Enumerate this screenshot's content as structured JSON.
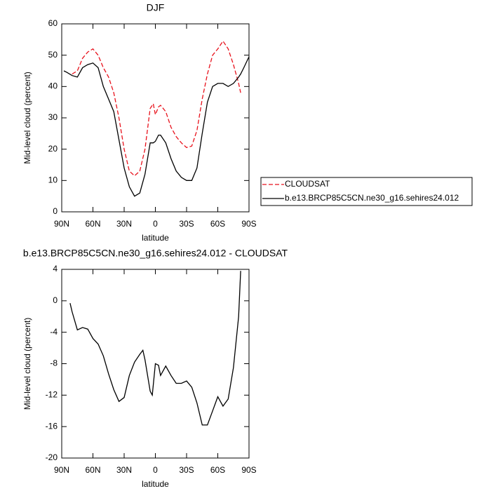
{
  "chart_data": [
    {
      "type": "line",
      "title": "DJF",
      "xlabel": "latitude",
      "ylabel": "Mid-level cloud (percent)",
      "xlim": [
        90,
        -90
      ],
      "xticks": [
        {
          "value": 90,
          "label": "90N"
        },
        {
          "value": 60,
          "label": "60N"
        },
        {
          "value": 30,
          "label": "30N"
        },
        0,
        {
          "value": -30,
          "label": "30S"
        },
        {
          "value": -60,
          "label": "60S"
        },
        {
          "value": -90,
          "label": "90S"
        }
      ],
      "ylim": [
        0,
        60
      ],
      "yticks": [
        0,
        10,
        20,
        30,
        40,
        50,
        60
      ],
      "x": [
        88,
        85,
        80,
        75,
        70,
        65,
        60,
        55,
        50,
        45,
        40,
        35,
        30,
        25,
        20,
        15,
        10,
        5,
        2,
        0,
        -3,
        -5,
        -10,
        -15,
        -20,
        -25,
        -30,
        -35,
        -40,
        -45,
        -50,
        -55,
        -60,
        -65,
        -70,
        -75,
        -80,
        -82,
        -85,
        -90
      ],
      "series": [
        {
          "name": "CLOUDSAT",
          "color": "#e8121c",
          "dashed": true,
          "values": [
            null,
            null,
            44,
            45,
            49,
            51,
            52,
            50,
            46,
            43,
            38,
            30,
            20,
            13,
            11.5,
            13,
            20,
            33,
            34.5,
            31,
            33.5,
            34,
            32,
            27,
            24,
            22,
            20.5,
            21,
            26,
            36,
            44,
            50,
            52,
            54.5,
            52,
            47,
            41,
            38,
            null,
            null
          ]
        },
        {
          "name": "b.e13.BRCP85C5CN.ne30_g16.sehires24.012",
          "color": "#000000",
          "dashed": false,
          "values": [
            45,
            44.5,
            43.5,
            43,
            46,
            47,
            47.5,
            46,
            40,
            36,
            32,
            23,
            14,
            8,
            5,
            6,
            12,
            22,
            22,
            22.5,
            24.5,
            24.5,
            22,
            17,
            13,
            11,
            10,
            10,
            14,
            25,
            35,
            40,
            41,
            41,
            40,
            41,
            43,
            44,
            46,
            49.5
          ]
        }
      ]
    },
    {
      "type": "line",
      "title": "b.e13.BRCP85C5CN.ne30_g16.sehires24.012 - CLOUDSAT",
      "xlabel": "latitude",
      "ylabel": "Mid-level cloud (percent)",
      "xlim": [
        90,
        -90
      ],
      "xticks": [
        {
          "value": 90,
          "label": "90N"
        },
        {
          "value": 60,
          "label": "60N"
        },
        {
          "value": 30,
          "label": "30N"
        },
        0,
        {
          "value": -30,
          "label": "30S"
        },
        {
          "value": -60,
          "label": "60S"
        },
        {
          "value": -90,
          "label": "90S"
        }
      ],
      "ylim": [
        -20,
        4
      ],
      "yticks": [
        -20,
        -16,
        -12,
        -8,
        -4,
        0,
        4
      ],
      "x": [
        82,
        80,
        75,
        70,
        65,
        60,
        55,
        50,
        45,
        40,
        35,
        30,
        25,
        20,
        15,
        12,
        10,
        5,
        3,
        0,
        -3,
        -5,
        -10,
        -15,
        -20,
        -25,
        -30,
        -35,
        -40,
        -45,
        -50,
        -55,
        -60,
        -65,
        -70,
        -75,
        -80,
        -82
      ],
      "series": [
        {
          "color": "#000000",
          "dashed": false,
          "values": [
            -0.3,
            -1.4,
            -3.7,
            -3.4,
            -3.6,
            -4.8,
            -5.5,
            -7,
            -9.3,
            -11.3,
            -12.8,
            -12.3,
            -9.5,
            -7.8,
            -6.8,
            -6.3,
            -7.5,
            -11.5,
            -12,
            -8,
            -8.2,
            -9.5,
            -8.3,
            -9.5,
            -10.5,
            -10.5,
            -10.2,
            -11,
            -13,
            -15.8,
            -15.8,
            -14,
            -12.2,
            -13.4,
            -12.5,
            -8.5,
            -2,
            3.8
          ]
        }
      ]
    }
  ]
}
